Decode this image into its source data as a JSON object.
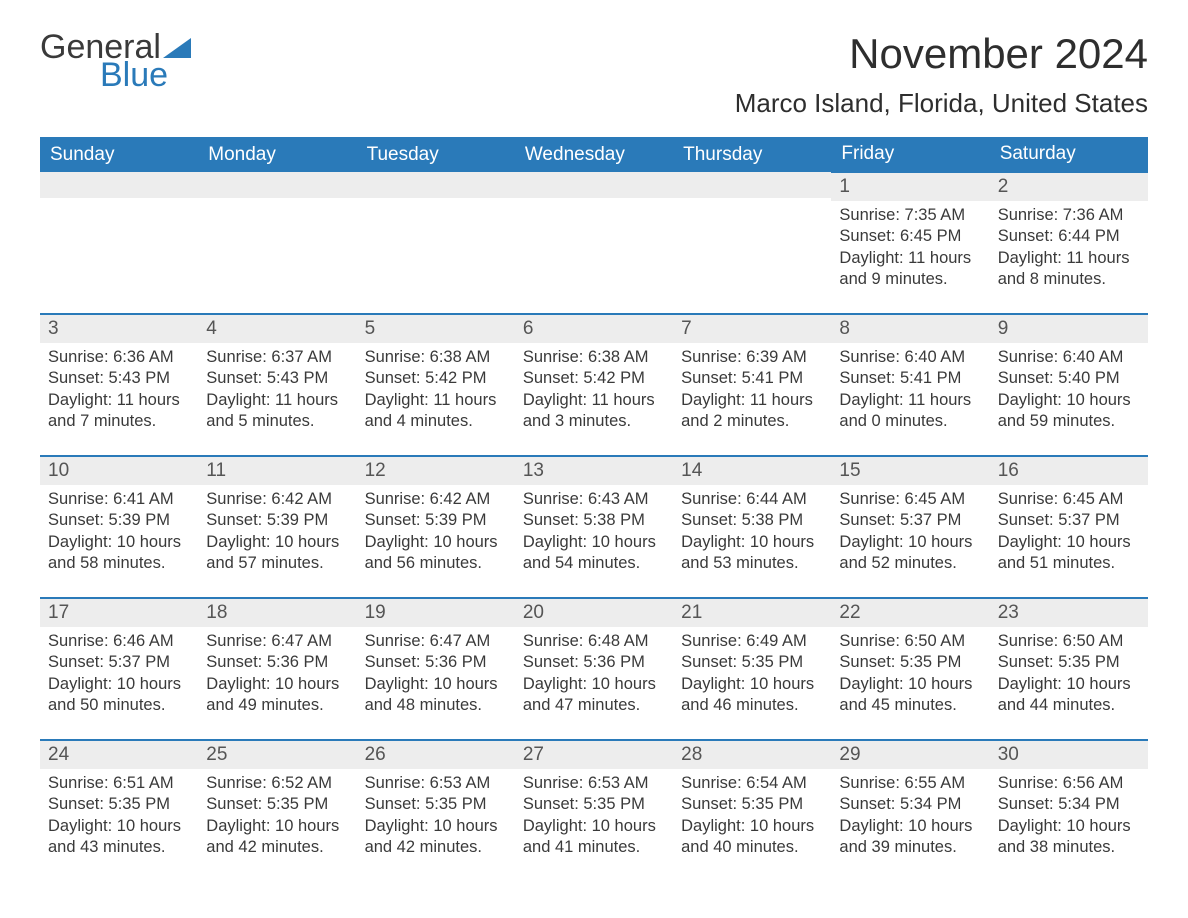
{
  "brand": {
    "text1": "General",
    "text2": "Blue",
    "flag_color": "#2a7ab9"
  },
  "title": "November 2024",
  "location": "Marco Island, Florida, United States",
  "colors": {
    "header_bg": "#2a7ab9",
    "header_text": "#ffffff",
    "day_num_bg": "#ededed",
    "cell_border": "#2a7ab9",
    "body_text": "#3a3a3a"
  },
  "typography": {
    "month_title_pt": 42,
    "location_pt": 26,
    "weekday_pt": 19,
    "day_num_pt": 19,
    "body_pt": 16.5
  },
  "weekdays": [
    "Sunday",
    "Monday",
    "Tuesday",
    "Wednesday",
    "Thursday",
    "Friday",
    "Saturday"
  ],
  "weeks": [
    [
      null,
      null,
      null,
      null,
      null,
      {
        "n": "1",
        "sunrise": "Sunrise: 7:35 AM",
        "sunset": "Sunset: 6:45 PM",
        "day1": "Daylight: 11 hours",
        "day2": "and 9 minutes."
      },
      {
        "n": "2",
        "sunrise": "Sunrise: 7:36 AM",
        "sunset": "Sunset: 6:44 PM",
        "day1": "Daylight: 11 hours",
        "day2": "and 8 minutes."
      }
    ],
    [
      {
        "n": "3",
        "sunrise": "Sunrise: 6:36 AM",
        "sunset": "Sunset: 5:43 PM",
        "day1": "Daylight: 11 hours",
        "day2": "and 7 minutes."
      },
      {
        "n": "4",
        "sunrise": "Sunrise: 6:37 AM",
        "sunset": "Sunset: 5:43 PM",
        "day1": "Daylight: 11 hours",
        "day2": "and 5 minutes."
      },
      {
        "n": "5",
        "sunrise": "Sunrise: 6:38 AM",
        "sunset": "Sunset: 5:42 PM",
        "day1": "Daylight: 11 hours",
        "day2": "and 4 minutes."
      },
      {
        "n": "6",
        "sunrise": "Sunrise: 6:38 AM",
        "sunset": "Sunset: 5:42 PM",
        "day1": "Daylight: 11 hours",
        "day2": "and 3 minutes."
      },
      {
        "n": "7",
        "sunrise": "Sunrise: 6:39 AM",
        "sunset": "Sunset: 5:41 PM",
        "day1": "Daylight: 11 hours",
        "day2": "and 2 minutes."
      },
      {
        "n": "8",
        "sunrise": "Sunrise: 6:40 AM",
        "sunset": "Sunset: 5:41 PM",
        "day1": "Daylight: 11 hours",
        "day2": "and 0 minutes."
      },
      {
        "n": "9",
        "sunrise": "Sunrise: 6:40 AM",
        "sunset": "Sunset: 5:40 PM",
        "day1": "Daylight: 10 hours",
        "day2": "and 59 minutes."
      }
    ],
    [
      {
        "n": "10",
        "sunrise": "Sunrise: 6:41 AM",
        "sunset": "Sunset: 5:39 PM",
        "day1": "Daylight: 10 hours",
        "day2": "and 58 minutes."
      },
      {
        "n": "11",
        "sunrise": "Sunrise: 6:42 AM",
        "sunset": "Sunset: 5:39 PM",
        "day1": "Daylight: 10 hours",
        "day2": "and 57 minutes."
      },
      {
        "n": "12",
        "sunrise": "Sunrise: 6:42 AM",
        "sunset": "Sunset: 5:39 PM",
        "day1": "Daylight: 10 hours",
        "day2": "and 56 minutes."
      },
      {
        "n": "13",
        "sunrise": "Sunrise: 6:43 AM",
        "sunset": "Sunset: 5:38 PM",
        "day1": "Daylight: 10 hours",
        "day2": "and 54 minutes."
      },
      {
        "n": "14",
        "sunrise": "Sunrise: 6:44 AM",
        "sunset": "Sunset: 5:38 PM",
        "day1": "Daylight: 10 hours",
        "day2": "and 53 minutes."
      },
      {
        "n": "15",
        "sunrise": "Sunrise: 6:45 AM",
        "sunset": "Sunset: 5:37 PM",
        "day1": "Daylight: 10 hours",
        "day2": "and 52 minutes."
      },
      {
        "n": "16",
        "sunrise": "Sunrise: 6:45 AM",
        "sunset": "Sunset: 5:37 PM",
        "day1": "Daylight: 10 hours",
        "day2": "and 51 minutes."
      }
    ],
    [
      {
        "n": "17",
        "sunrise": "Sunrise: 6:46 AM",
        "sunset": "Sunset: 5:37 PM",
        "day1": "Daylight: 10 hours",
        "day2": "and 50 minutes."
      },
      {
        "n": "18",
        "sunrise": "Sunrise: 6:47 AM",
        "sunset": "Sunset: 5:36 PM",
        "day1": "Daylight: 10 hours",
        "day2": "and 49 minutes."
      },
      {
        "n": "19",
        "sunrise": "Sunrise: 6:47 AM",
        "sunset": "Sunset: 5:36 PM",
        "day1": "Daylight: 10 hours",
        "day2": "and 48 minutes."
      },
      {
        "n": "20",
        "sunrise": "Sunrise: 6:48 AM",
        "sunset": "Sunset: 5:36 PM",
        "day1": "Daylight: 10 hours",
        "day2": "and 47 minutes."
      },
      {
        "n": "21",
        "sunrise": "Sunrise: 6:49 AM",
        "sunset": "Sunset: 5:35 PM",
        "day1": "Daylight: 10 hours",
        "day2": "and 46 minutes."
      },
      {
        "n": "22",
        "sunrise": "Sunrise: 6:50 AM",
        "sunset": "Sunset: 5:35 PM",
        "day1": "Daylight: 10 hours",
        "day2": "and 45 minutes."
      },
      {
        "n": "23",
        "sunrise": "Sunrise: 6:50 AM",
        "sunset": "Sunset: 5:35 PM",
        "day1": "Daylight: 10 hours",
        "day2": "and 44 minutes."
      }
    ],
    [
      {
        "n": "24",
        "sunrise": "Sunrise: 6:51 AM",
        "sunset": "Sunset: 5:35 PM",
        "day1": "Daylight: 10 hours",
        "day2": "and 43 minutes."
      },
      {
        "n": "25",
        "sunrise": "Sunrise: 6:52 AM",
        "sunset": "Sunset: 5:35 PM",
        "day1": "Daylight: 10 hours",
        "day2": "and 42 minutes."
      },
      {
        "n": "26",
        "sunrise": "Sunrise: 6:53 AM",
        "sunset": "Sunset: 5:35 PM",
        "day1": "Daylight: 10 hours",
        "day2": "and 42 minutes."
      },
      {
        "n": "27",
        "sunrise": "Sunrise: 6:53 AM",
        "sunset": "Sunset: 5:35 PM",
        "day1": "Daylight: 10 hours",
        "day2": "and 41 minutes."
      },
      {
        "n": "28",
        "sunrise": "Sunrise: 6:54 AM",
        "sunset": "Sunset: 5:35 PM",
        "day1": "Daylight: 10 hours",
        "day2": "and 40 minutes."
      },
      {
        "n": "29",
        "sunrise": "Sunrise: 6:55 AM",
        "sunset": "Sunset: 5:34 PM",
        "day1": "Daylight: 10 hours",
        "day2": "and 39 minutes."
      },
      {
        "n": "30",
        "sunrise": "Sunrise: 6:56 AM",
        "sunset": "Sunset: 5:34 PM",
        "day1": "Daylight: 10 hours",
        "day2": "and 38 minutes."
      }
    ]
  ]
}
